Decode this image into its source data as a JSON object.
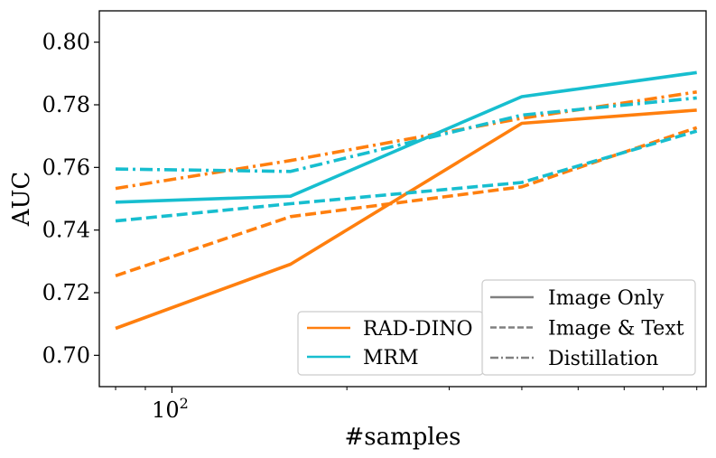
{
  "chart_data": {
    "type": "line",
    "xscale": "log",
    "x": [
      80,
      160,
      400,
      800
    ],
    "xlim": [
      75,
      830
    ],
    "ylim": [
      0.69,
      0.81
    ],
    "yticks": [
      "0.70",
      "0.72",
      "0.74",
      "0.76",
      "0.78",
      "0.80"
    ],
    "xtick_label": {
      "base": "10",
      "exp": "2"
    },
    "xlabel": "#samples",
    "ylabel": "AUC",
    "models": [
      {
        "name": "RAD-DINO",
        "color": "#ff7f0e"
      },
      {
        "name": "MRM",
        "color": "#17becf"
      }
    ],
    "styles": [
      {
        "name": "Image Only",
        "dash": "solid"
      },
      {
        "name": "Image & Text",
        "dash": "dashed"
      },
      {
        "name": "Distillation",
        "dash": "dashdot"
      }
    ],
    "series": [
      {
        "model": "RAD-DINO",
        "style": "Image Only",
        "values": [
          0.7086,
          0.7291,
          0.7741,
          0.7783
        ]
      },
      {
        "model": "RAD-DINO",
        "style": "Image & Text",
        "values": [
          0.7254,
          0.7443,
          0.7538,
          0.7727
        ]
      },
      {
        "model": "RAD-DINO",
        "style": "Distillation",
        "values": [
          0.7533,
          0.7622,
          0.7757,
          0.7841
        ]
      },
      {
        "model": "MRM",
        "style": "Image Only",
        "values": [
          0.7489,
          0.7508,
          0.7826,
          0.7903
        ]
      },
      {
        "model": "MRM",
        "style": "Image & Text",
        "values": [
          0.7429,
          0.7484,
          0.7552,
          0.7716
        ]
      },
      {
        "model": "MRM",
        "style": "Distillation",
        "values": [
          0.7595,
          0.7587,
          0.7767,
          0.7822
        ]
      }
    ],
    "legends": {
      "models_location": "lower-center",
      "styles_location": "lower-right"
    }
  }
}
